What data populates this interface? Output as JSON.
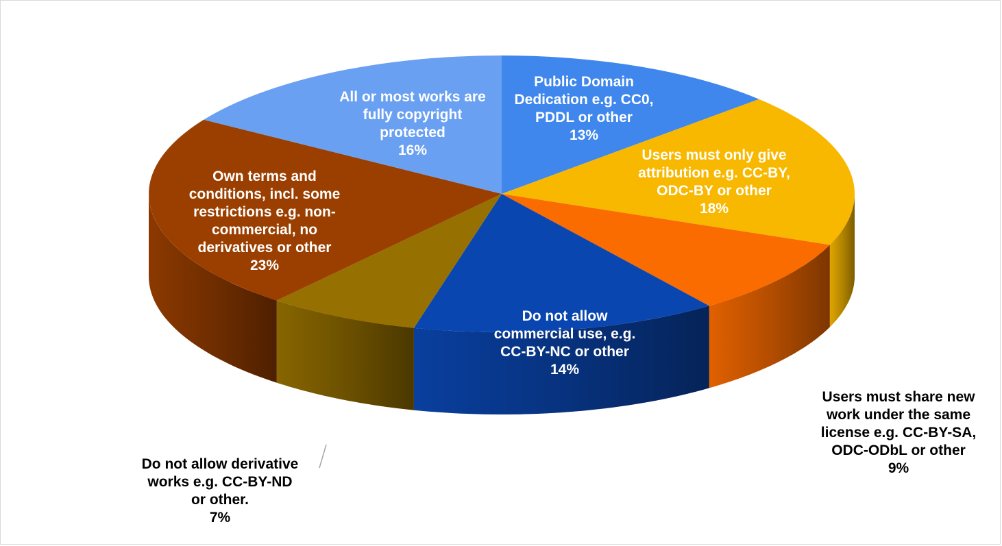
{
  "chart_data": {
    "type": "pie",
    "title": "",
    "series": [
      {
        "name": "",
        "slices": [
          {
            "label": "Public Domain Dedication e.g. CC0, PDDL or other",
            "value": 13,
            "value_label": "13%",
            "color": "#3f87ec"
          },
          {
            "label": "Users must only give attribution e.g. CC-BY, ODC-BY or other",
            "value": 18,
            "value_label": "18%",
            "color": "#f8b800"
          },
          {
            "label": "Users must share new work under the same license e.g. CC-BY-SA, ODC-ODbL or other",
            "value": 9,
            "value_label": "9%",
            "color": "#fa6b00"
          },
          {
            "label": "Do not allow commercial use, e.g. CC-BY-NC or other",
            "value": 14,
            "value_label": "14%",
            "color": "#0a46b0"
          },
          {
            "label": "Do not allow derivative works e.g. CC-BY-ND or other.",
            "value": 7,
            "value_label": "7%",
            "color": "#967000"
          },
          {
            "label": "Own terms and conditions, incl. some restrictions e.g. non-commercial, no derivatives or other",
            "value": 23,
            "value_label": "23%",
            "color": "#9b3f00"
          },
          {
            "label": "All or most works are fully copyright protected",
            "value": 16,
            "value_label": "16%",
            "color": "#6aa0f2"
          }
        ]
      }
    ],
    "style": "3d-pie",
    "legend": "none"
  },
  "labels": [
    {
      "lines": [
        "Public Domain",
        "Dedication e.g. CC0,",
        "PDDL or other",
        "13%"
      ],
      "placement": "inside"
    },
    {
      "lines": [
        "Users must only give",
        "attribution e.g. CC-BY,",
        "ODC-BY or other",
        "18%"
      ],
      "placement": "inside"
    },
    {
      "lines": [
        "Users must share new",
        "work under the same",
        "license e.g. CC-BY-SA,",
        "ODC-ODbL or other",
        "9%"
      ],
      "placement": "outside"
    },
    {
      "lines": [
        "Do not allow",
        "commercial use, e.g.",
        "CC-BY-NC or other",
        "14%"
      ],
      "placement": "inside"
    },
    {
      "lines": [
        "Do not allow derivative",
        "works e.g. CC-BY-ND",
        "or other.",
        "7%"
      ],
      "placement": "outside"
    },
    {
      "lines": [
        "Own terms and",
        "conditions, incl. some",
        "restrictions e.g. non-",
        "commercial, no",
        "derivatives or other",
        "23%"
      ],
      "placement": "inside"
    },
    {
      "lines": [
        "All or most works are",
        "fully copyright",
        "protected",
        "16%"
      ],
      "placement": "inside"
    }
  ]
}
